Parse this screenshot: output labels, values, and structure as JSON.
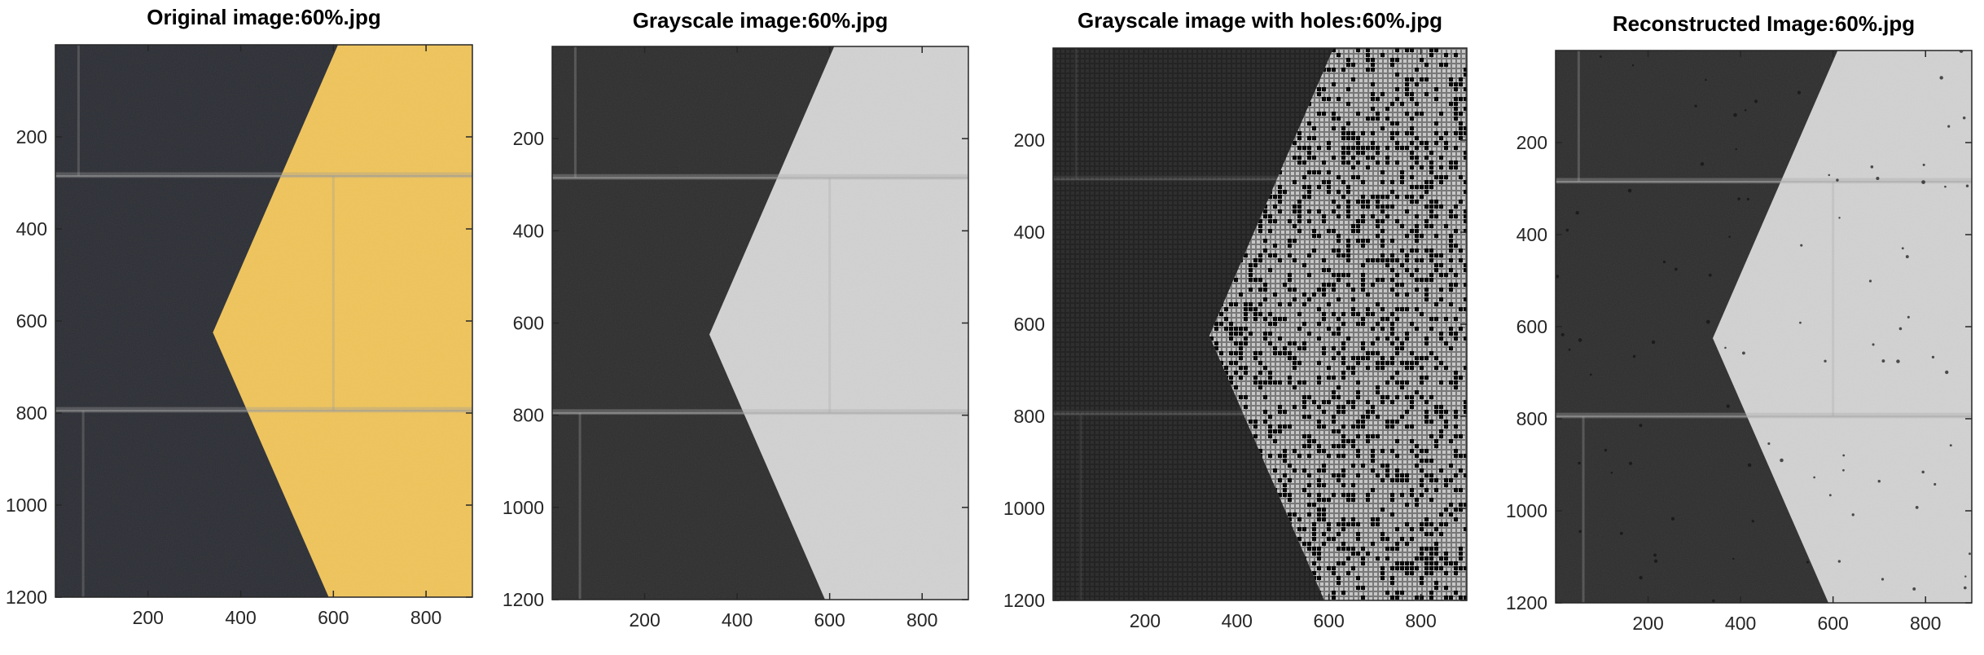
{
  "figure": {
    "panels": [
      {
        "title": "Original image:60%.jpg",
        "mode": "color",
        "xticks": [
          "200",
          "400",
          "600",
          "800"
        ],
        "yticks": [
          "200",
          "400",
          "600",
          "800",
          "1000",
          "1200"
        ]
      },
      {
        "title": "Grayscale image:60%.jpg",
        "mode": "gray",
        "xticks": [
          "200",
          "400",
          "600",
          "800"
        ],
        "yticks": [
          "200",
          "400",
          "600",
          "800",
          "1000",
          "1200"
        ]
      },
      {
        "title": "Grayscale image with holes:60%.jpg",
        "mode": "holes",
        "xticks": [
          "200",
          "400",
          "600",
          "800"
        ],
        "yticks": [
          "200",
          "400",
          "600",
          "800",
          "1000",
          "1200"
        ]
      },
      {
        "title": "Reconstructed Image:60%.jpg",
        "mode": "recon",
        "xticks": [
          "200",
          "400",
          "600",
          "800"
        ],
        "yticks": [
          "200",
          "400",
          "600",
          "800",
          "1000",
          "1200"
        ]
      }
    ],
    "image_width": 900,
    "image_height": 1200,
    "colors": {
      "dark_wall": "#2c2e35",
      "yellow_paint": "#f0c45a",
      "gray_dark": "#2e2e2e",
      "gray_light": "#d2d2d2",
      "hole_dark": "#0a0a0a"
    }
  }
}
